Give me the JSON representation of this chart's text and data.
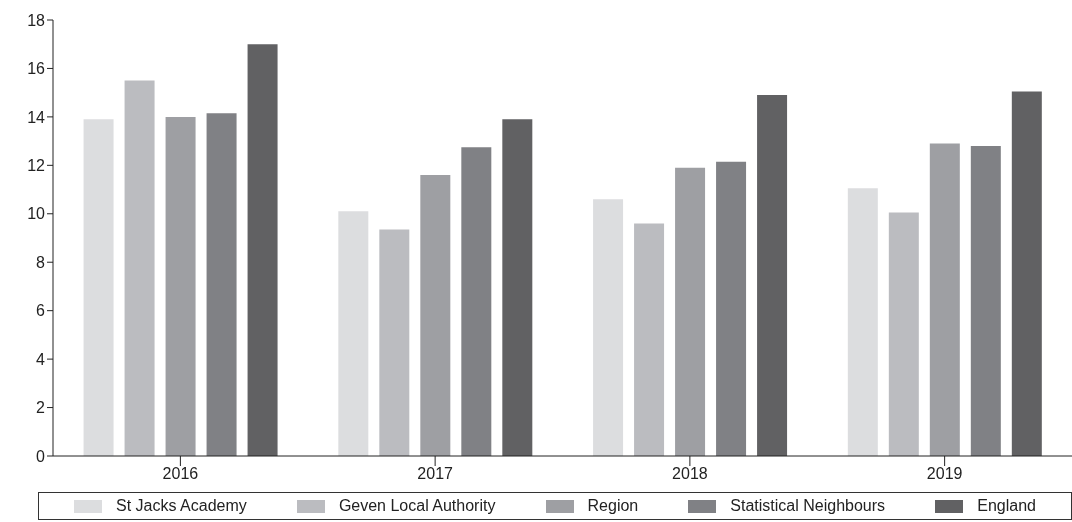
{
  "chart_data": {
    "type": "bar",
    "categories": [
      "2016",
      "2017",
      "2018",
      "2019"
    ],
    "series": [
      {
        "name": "St Jacks Academy",
        "color": "#dcdddf",
        "values": [
          13.9,
          10.1,
          10.6,
          11.05
        ]
      },
      {
        "name": "Geven Local Authority",
        "color": "#bbbcc0",
        "values": [
          15.5,
          9.35,
          9.6,
          10.05
        ]
      },
      {
        "name": "Region",
        "color": "#9e9fa3",
        "values": [
          14.0,
          11.6,
          11.9,
          12.9
        ]
      },
      {
        "name": "Statistical Neighbours",
        "color": "#808185",
        "values": [
          14.15,
          12.75,
          12.15,
          12.8
        ]
      },
      {
        "name": "England",
        "color": "#616163",
        "values": [
          17.0,
          13.9,
          14.9,
          15.05
        ]
      }
    ],
    "ylim": [
      0,
      18
    ],
    "yticks": [
      0,
      2,
      4,
      6,
      8,
      10,
      12,
      14,
      16,
      18
    ],
    "grid": false,
    "legend": "bottom"
  }
}
